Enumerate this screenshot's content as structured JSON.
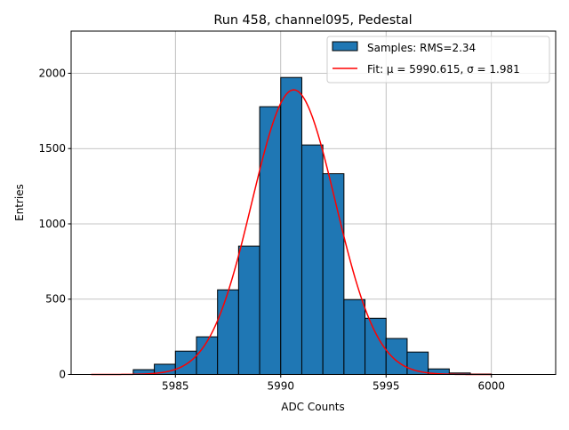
{
  "chart_data": {
    "type": "bar",
    "title": "Run 458, channel095, Pedestal",
    "xlabel": "ADC Counts",
    "ylabel": "Entries",
    "xlim": [
      5980.05,
      6003.05
    ],
    "ylim": [
      0,
      2280
    ],
    "xticks": [
      5985,
      5990,
      5995,
      6000
    ],
    "yticks": [
      0,
      500,
      1000,
      1500,
      2000
    ],
    "grid": true,
    "legend_position": "top-right",
    "histogram": {
      "name": "Samples: RMS=2.34",
      "bin_width": 1,
      "bin_left_edges": [
        5983,
        5984,
        5985,
        5986,
        5987,
        5988,
        5989,
        5990,
        5991,
        5992,
        5993,
        5994,
        5995,
        5996,
        5997,
        5998,
        5999
      ],
      "values": [
        32,
        68,
        155,
        250,
        562,
        852,
        1778,
        1972,
        1524,
        1333,
        497,
        373,
        239,
        149,
        37,
        10,
        3
      ],
      "color": "#1f77b4"
    },
    "fit": {
      "name": "Fit: μ = 5990.615, σ = 1.981",
      "mu": 5990.615,
      "sigma": 1.981,
      "amplitude": 1890,
      "x_range": [
        5981,
        6000
      ],
      "color": "#ff0000"
    }
  }
}
